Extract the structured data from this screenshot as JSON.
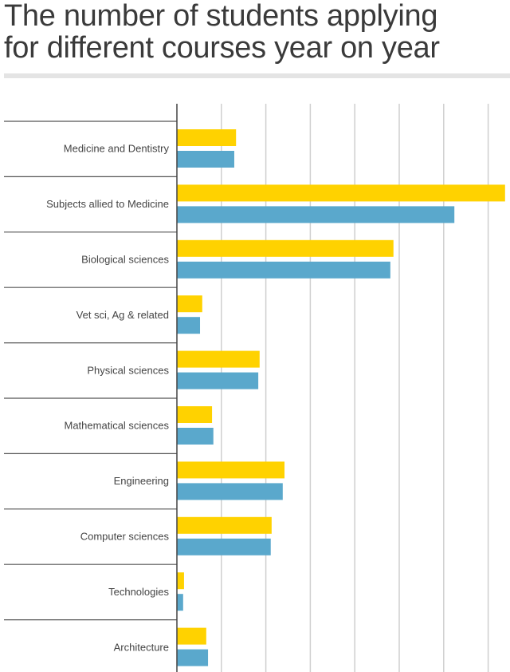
{
  "chart_data": {
    "type": "bar",
    "orientation": "horizontal",
    "title": "The number of students applying for different courses year on year",
    "title_lines": [
      "The number of students applying",
      "for different courses year on year"
    ],
    "categories": [
      "Medicine and Dentistry",
      "Subjects allied to Medicine",
      "Biological sciences",
      "Vet sci, Ag & related",
      "Physical sciences",
      "Mathematical sciences",
      "Engineering",
      "Computer sciences",
      "Technologies",
      "Architecture"
    ],
    "series": [
      {
        "color": "#FFD200",
        "values": [
          1.33,
          7.38,
          4.87,
          0.57,
          1.86,
          0.79,
          2.42,
          2.13,
          0.16,
          0.66
        ]
      },
      {
        "color": "#5AA8CC",
        "values": [
          1.29,
          6.24,
          4.8,
          0.52,
          1.83,
          0.82,
          2.38,
          2.11,
          0.14,
          0.7
        ]
      }
    ],
    "xlim": [
      0,
      7.5
    ],
    "x_gridlines": [
      1,
      2,
      3,
      4,
      5,
      6,
      7
    ],
    "tick_labels_shown": false,
    "grid": true,
    "legend": "none"
  }
}
